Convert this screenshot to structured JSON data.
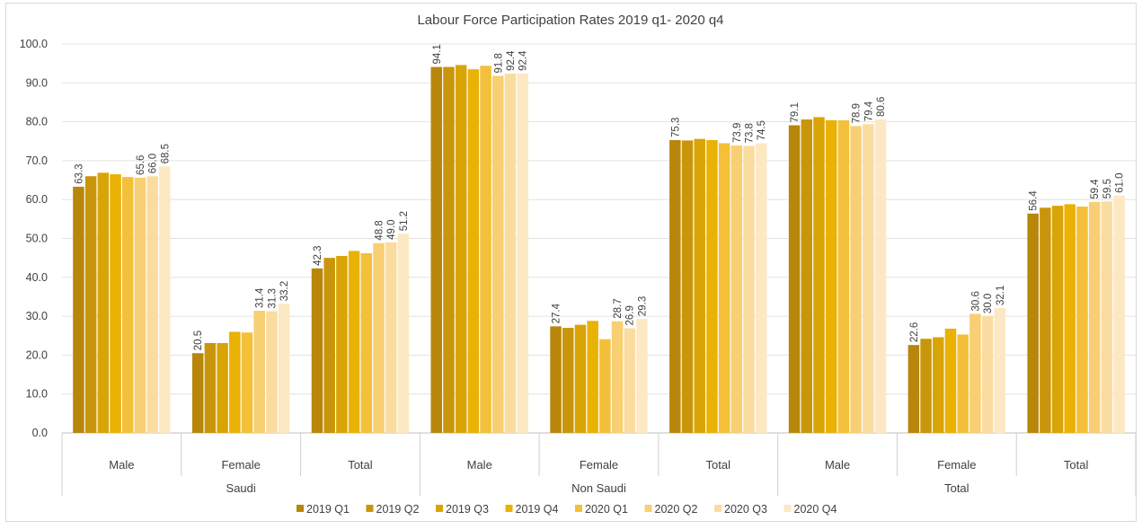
{
  "chart_data": {
    "type": "bar",
    "title": "Labour Force Participation Rates 2019 q1- 2020 q4",
    "xlabel": "",
    "ylabel": "",
    "ylim": [
      0,
      100
    ],
    "yticks": [
      "0.0",
      "10.0",
      "20.0",
      "30.0",
      "40.0",
      "50.0",
      "60.0",
      "70.0",
      "80.0",
      "90.0",
      "100.0"
    ],
    "grid": true,
    "legend_position": "bottom",
    "groups": [
      {
        "name": "Saudi",
        "categories": [
          "Male",
          "Female",
          "Total"
        ]
      },
      {
        "name": "Non Saudi",
        "categories": [
          "Male",
          "Female",
          "Total"
        ]
      },
      {
        "name": "Total",
        "categories": [
          "Male",
          "Female",
          "Total"
        ]
      }
    ],
    "series": [
      {
        "name": "2019 Q1",
        "color": "#b8860b",
        "values": [
          63.3,
          20.5,
          42.3,
          94.1,
          27.4,
          75.3,
          79.1,
          22.6,
          56.4
        ],
        "labels": [
          "63.3",
          "20.5",
          "42.3",
          "94.1",
          "27.4",
          "75.3",
          "79.1",
          "22.6",
          "56.4"
        ]
      },
      {
        "name": "2019 Q2",
        "color": "#c9950a",
        "values": [
          66.0,
          23.1,
          45.0,
          94.1,
          27.0,
          75.2,
          80.6,
          24.2,
          57.9
        ],
        "labels": [
          "",
          "",
          "",
          "",
          "",
          "",
          "",
          "",
          ""
        ]
      },
      {
        "name": "2019 Q3",
        "color": "#d9a406",
        "values": [
          66.9,
          23.1,
          45.5,
          94.6,
          27.8,
          75.6,
          81.2,
          24.6,
          58.4
        ],
        "labels": [
          "",
          "",
          "",
          "",
          "",
          "",
          "",
          "",
          ""
        ]
      },
      {
        "name": "2019 Q4",
        "color": "#eab205",
        "values": [
          66.5,
          26.0,
          46.8,
          93.5,
          28.8,
          75.3,
          80.4,
          26.8,
          58.8
        ],
        "labels": [
          "",
          "",
          "",
          "",
          "",
          "",
          "",
          "",
          ""
        ]
      },
      {
        "name": "2020 Q1",
        "color": "#f4c03a",
        "values": [
          65.8,
          25.8,
          46.2,
          94.4,
          24.1,
          74.5,
          80.4,
          25.3,
          58.2
        ],
        "labels": [
          "",
          "",
          "",
          "",
          "",
          "",
          "",
          "",
          ""
        ]
      },
      {
        "name": "2020 Q2",
        "color": "#f8cf72",
        "values": [
          65.6,
          31.4,
          48.8,
          91.8,
          28.7,
          73.9,
          78.9,
          30.6,
          59.4
        ],
        "labels": [
          "65.6",
          "31.4",
          "48.8",
          "91.8",
          "28.7",
          "73.9",
          "78.9",
          "30.6",
          "59.4"
        ]
      },
      {
        "name": "2020 Q3",
        "color": "#fbdca0",
        "values": [
          66.0,
          31.3,
          49.0,
          92.4,
          26.9,
          73.8,
          79.4,
          30.0,
          59.5
        ],
        "labels": [
          "66.0",
          "31.3",
          "49.0",
          "92.4",
          "26.9",
          "73.8",
          "79.4",
          "30.0",
          "59.5"
        ]
      },
      {
        "name": "2020 Q4",
        "color": "#fde8c4",
        "values": [
          68.5,
          33.2,
          51.2,
          92.4,
          29.3,
          74.5,
          80.6,
          32.1,
          61.0
        ],
        "labels": [
          "68.5",
          "33.2",
          "51.2",
          "92.4",
          "29.3",
          "74.5",
          "80.6",
          "32.1",
          "61.0"
        ]
      }
    ]
  }
}
